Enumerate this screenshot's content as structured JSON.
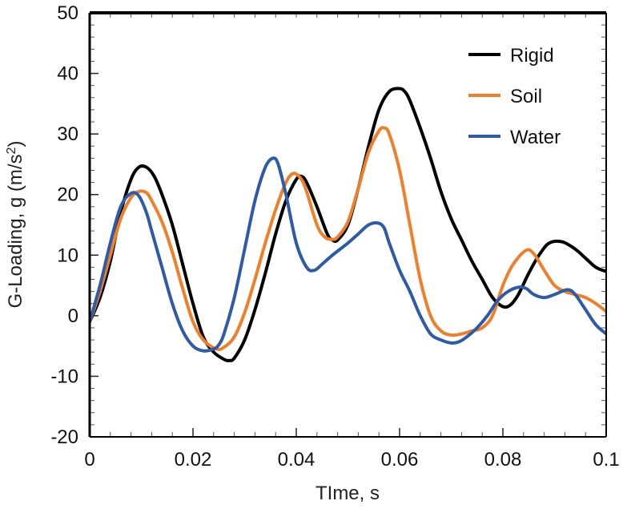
{
  "chart_data": {
    "type": "line",
    "title": "",
    "xlabel": "TIme, s",
    "ylabel_main": "G-Loading, g (m/s",
    "ylabel_sup": "2",
    "ylabel_close": ")",
    "xlim": [
      0,
      0.1
    ],
    "ylim": [
      -20,
      50
    ],
    "x_ticks": [
      0,
      0.02,
      0.04,
      0.06,
      0.08,
      0.1
    ],
    "x_tick_labels": [
      "0",
      "0.02",
      "0.04",
      "0.06",
      "0.08",
      "0.1"
    ],
    "y_ticks": [
      -20,
      -10,
      0,
      10,
      20,
      30,
      40,
      50
    ],
    "y_tick_labels": [
      "-20",
      "-10",
      "0",
      "10",
      "20",
      "30",
      "40",
      "50"
    ],
    "grid": false,
    "legend_position": "top-right",
    "series": [
      {
        "name": "Rigid",
        "color": "#000000",
        "x": [
          0,
          0.002,
          0.004,
          0.006,
          0.008,
          0.0095,
          0.011,
          0.0125,
          0.014,
          0.016,
          0.018,
          0.02,
          0.022,
          0.024,
          0.026,
          0.027,
          0.028,
          0.03,
          0.032,
          0.034,
          0.036,
          0.038,
          0.04,
          0.041,
          0.042,
          0.044,
          0.046,
          0.047,
          0.048,
          0.05,
          0.052,
          0.054,
          0.056,
          0.058,
          0.06,
          0.061,
          0.062,
          0.064,
          0.066,
          0.068,
          0.07,
          0.072,
          0.074,
          0.076,
          0.078,
          0.08,
          0.0815,
          0.083,
          0.085,
          0.087,
          0.089,
          0.0915,
          0.094,
          0.096,
          0.098,
          0.1
        ],
        "y": [
          -1,
          3,
          9,
          17,
          22.5,
          24.5,
          24.5,
          23,
          20,
          15,
          8.5,
          2,
          -3.5,
          -6,
          -7.2,
          -7.4,
          -7,
          -4,
          1,
          7,
          13.5,
          19,
          22.5,
          23,
          22,
          18,
          13.5,
          12.5,
          12.5,
          15,
          21,
          28,
          34,
          37,
          37.5,
          37,
          35.5,
          31,
          26,
          20.5,
          16,
          12.5,
          9,
          6,
          3,
          1.5,
          1.8,
          3.5,
          7,
          10,
          12,
          12.2,
          11,
          9.5,
          8,
          7.3
        ]
      },
      {
        "name": "Soil",
        "color": "#F07F2A",
        "x": [
          0,
          0.002,
          0.004,
          0.006,
          0.008,
          0.0095,
          0.011,
          0.012,
          0.014,
          0.016,
          0.018,
          0.02,
          0.022,
          0.0245,
          0.026,
          0.028,
          0.03,
          0.032,
          0.034,
          0.036,
          0.038,
          0.0395,
          0.041,
          0.042,
          0.044,
          0.0455,
          0.047,
          0.048,
          0.05,
          0.052,
          0.054,
          0.056,
          0.057,
          0.058,
          0.06,
          0.062,
          0.064,
          0.066,
          0.068,
          0.07,
          0.072,
          0.074,
          0.076,
          0.078,
          0.08,
          0.082,
          0.0845,
          0.086,
          0.088,
          0.09,
          0.092,
          0.094,
          0.096,
          0.098,
          0.1
        ],
        "y": [
          -1,
          4,
          10,
          16,
          19.5,
          20.5,
          20.3,
          19,
          15.5,
          10.5,
          4.5,
          -1,
          -4,
          -5.5,
          -5.2,
          -3.5,
          0.5,
          6,
          12,
          17.5,
          22,
          23.5,
          22.5,
          20.5,
          15,
          13,
          12.6,
          13,
          15.5,
          21,
          27,
          30.5,
          31,
          30,
          24,
          15,
          6,
          0,
          -2.5,
          -3.2,
          -3,
          -2.5,
          -2,
          0,
          5,
          8.5,
          10.8,
          10.2,
          7.5,
          5,
          4,
          3.5,
          3,
          2,
          0.7
        ]
      },
      {
        "name": "Water",
        "color": "#2E5BA8",
        "x": [
          0,
          0.002,
          0.004,
          0.006,
          0.008,
          0.0095,
          0.011,
          0.012,
          0.014,
          0.016,
          0.018,
          0.02,
          0.022,
          0.024,
          0.025,
          0.026,
          0.028,
          0.03,
          0.032,
          0.034,
          0.0355,
          0.0365,
          0.038,
          0.04,
          0.042,
          0.0435,
          0.045,
          0.047,
          0.05,
          0.052,
          0.054,
          0.0558,
          0.057,
          0.058,
          0.06,
          0.062,
          0.064,
          0.066,
          0.068,
          0.07,
          0.0715,
          0.073,
          0.075,
          0.077,
          0.079,
          0.081,
          0.083,
          0.0845,
          0.086,
          0.088,
          0.09,
          0.0925,
          0.094,
          0.096,
          0.098,
          0.1
        ],
        "y": [
          -1,
          5,
          12,
          18,
          20.2,
          19.8,
          17,
          14,
          8,
          2,
          -2.5,
          -5,
          -5.8,
          -5.5,
          -4.8,
          -3,
          3,
          11,
          19,
          24.5,
          26,
          25,
          20,
          12,
          8,
          7.5,
          8.5,
          10,
          12,
          13.5,
          15,
          15.3,
          14.5,
          12,
          7.5,
          4,
          0,
          -3,
          -4,
          -4.5,
          -4.3,
          -3.5,
          -2,
          0,
          2.5,
          4,
          4.7,
          4.5,
          3.5,
          3,
          3.5,
          4.3,
          3.5,
          1,
          -1.5,
          -3
        ]
      }
    ]
  }
}
